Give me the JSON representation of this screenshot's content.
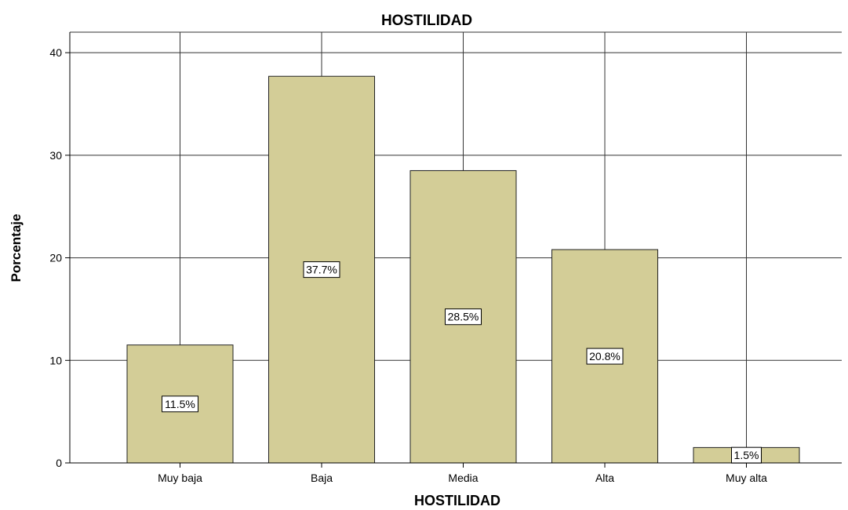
{
  "chart_data": {
    "type": "bar",
    "title": "HOSTILIDAD",
    "xlabel": "HOSTILIDAD",
    "ylabel": "Porcentaje",
    "categories": [
      "Muy baja",
      "Baja",
      "Media",
      "Alta",
      "Muy alta"
    ],
    "values": [
      11.5,
      37.7,
      28.5,
      20.8,
      1.5
    ],
    "data_labels": [
      "11.5%",
      "37.7%",
      "28.5%",
      "20.8%",
      "1.5%"
    ],
    "ylim": [
      0,
      42
    ],
    "yticks": [
      0,
      10,
      20,
      30,
      40
    ],
    "grid": true,
    "legend": "none",
    "bar_color": "#d3cd97",
    "bar_edge_color": "#222222"
  }
}
